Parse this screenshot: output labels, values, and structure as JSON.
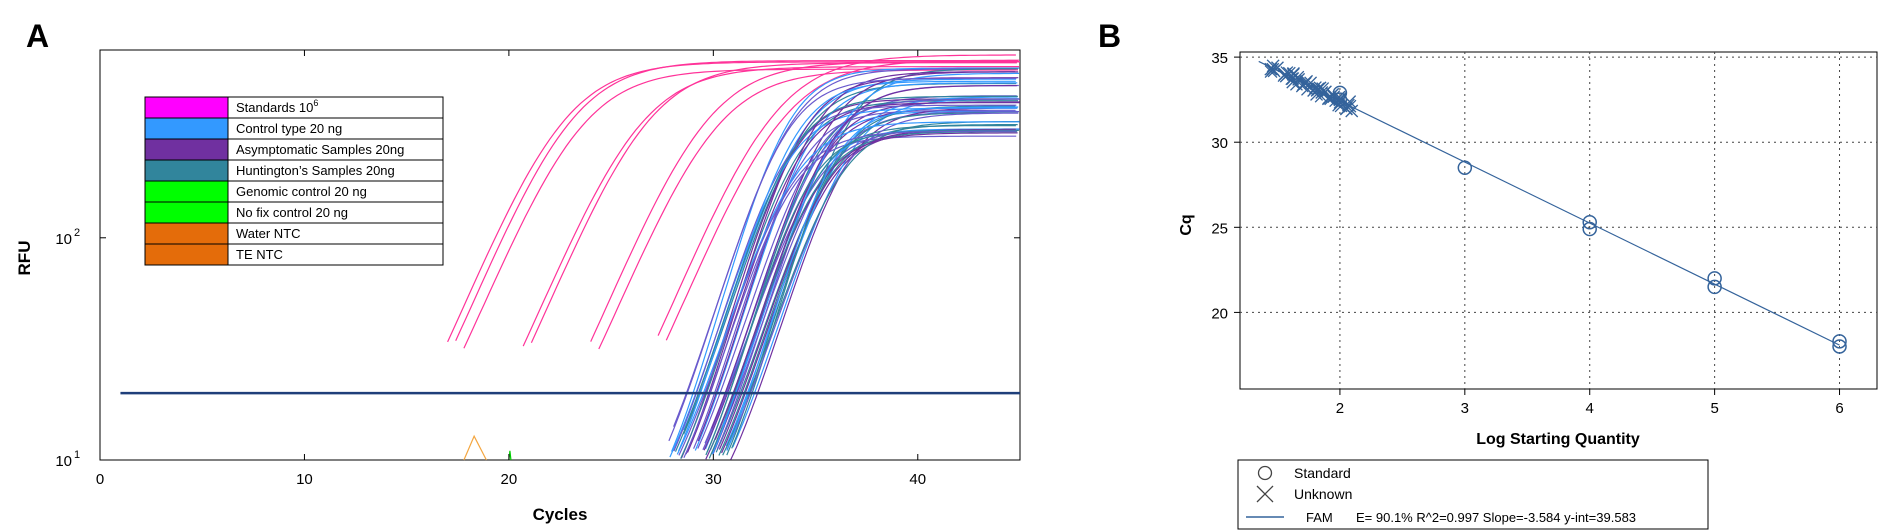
{
  "panels": {
    "a": "A",
    "b": "B"
  },
  "chart_data": [
    {
      "type": "line",
      "xlabel": "Cycles",
      "ylabel": "RFU",
      "xlim": [
        0,
        45
      ],
      "ylim": [
        10,
        700
      ],
      "y_scale": "log",
      "x_ticks": [
        "0",
        "10",
        "20",
        "30",
        "40"
      ],
      "y_ticks": [
        {
          "base": "10",
          "exp": "1"
        },
        {
          "base": "10",
          "exp": "2"
        }
      ],
      "threshold": 20,
      "legend": [
        {
          "label": "Standards  10",
          "sup": "6",
          "color": "#ff00ff"
        },
        {
          "label": "Control type 20 ng",
          "color": "#3399ff"
        },
        {
          "label": "Asymptomatic Samples 20ng",
          "color": "#7030a0"
        },
        {
          "label": "Huntington’s Samples 20ng",
          "color": "#31859c"
        },
        {
          "label": "Genomic control 20 ng",
          "color": "#00ff00"
        },
        {
          "label": "No fix control 20 ng",
          "color": "#00ff00"
        },
        {
          "label": "Water NTC",
          "color": "#e46c0a"
        },
        {
          "label": "TE NTC",
          "color": "#e46c0a"
        }
      ],
      "series": [
        {
          "group": "standards",
          "color": "#ff3399",
          "ct": [
            18.2,
            18.6,
            19.0,
            21.9,
            22.3,
            25.2,
            25.6,
            28.5,
            28.9
          ]
        },
        {
          "group": "samples",
          "ct_range": [
            32.2,
            35.4
          ],
          "count": 48,
          "colors": [
            "#3399ff",
            "#7030a0",
            "#31859c",
            "#6a5acd"
          ]
        }
      ],
      "threshold_color": "#1f3f7a"
    },
    {
      "type": "scatter",
      "xlabel": "Log Starting Quantity",
      "ylabel": "Cq",
      "xlim": [
        1.2,
        6.3
      ],
      "ylim": [
        15.5,
        35.3
      ],
      "grid": true,
      "x_ticks": [
        "2",
        "3",
        "4",
        "5",
        "6"
      ],
      "y_ticks": [
        "20",
        "25",
        "30",
        "35"
      ],
      "series": [
        {
          "name": "Standard",
          "marker": "circle",
          "points": [
            [
              2,
              32.9
            ],
            [
              2,
              32.5
            ],
            [
              3,
              28.5
            ],
            [
              4,
              25.3
            ],
            [
              4,
              24.9
            ],
            [
              5,
              22.0
            ],
            [
              5,
              21.5
            ],
            [
              6,
              18.3
            ],
            [
              6,
              18.0
            ]
          ]
        },
        {
          "name": "Unknown",
          "marker": "x",
          "x_range": [
            1.42,
            2.1
          ],
          "count": 60
        }
      ],
      "fit": {
        "name": "FAM",
        "slope": -3.584,
        "intercept": 39.583,
        "x_range": [
          1.35,
          6.0
        ],
        "label": "E= 90.1% R^2=0.997 Slope=-3.584 y-int=39.583"
      },
      "legend": [
        "Standard",
        "Unknown",
        "FAM"
      ],
      "color": "#34639b"
    }
  ]
}
